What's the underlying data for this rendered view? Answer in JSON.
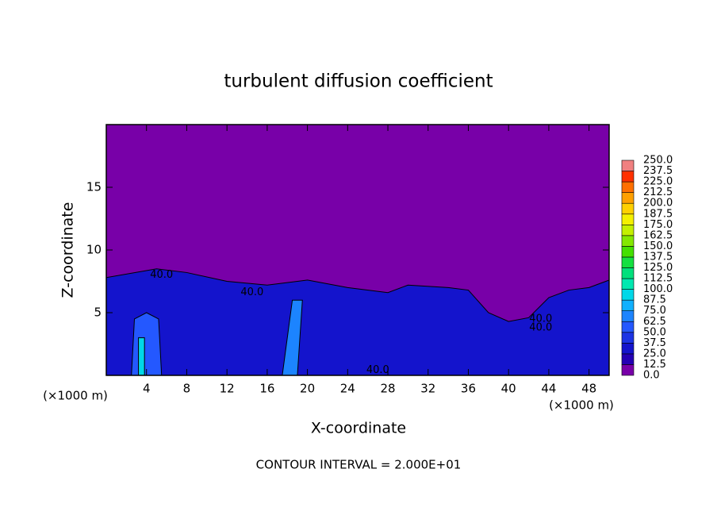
{
  "chart_data": {
    "type": "contour",
    "title": "turbulent diffusion coefficient",
    "x_label": "X-coordinate",
    "y_label": "Z-coordinate",
    "z_unit_label": "(×1000 m)",
    "x_unit_label": "(×1000 m)",
    "footer": "CONTOUR INTERVAL = 2.000E+01",
    "xlim": [
      0,
      50
    ],
    "ylim": [
      0,
      20
    ],
    "xticks": [
      4,
      8,
      12,
      16,
      20,
      24,
      28,
      32,
      36,
      40,
      44,
      48
    ],
    "yticks": [
      5,
      10,
      15
    ],
    "colorbar": {
      "ticks": [
        {
          "value": 0,
          "label": "0.0"
        },
        {
          "value": 12.5,
          "label": "12.5"
        },
        {
          "value": 25,
          "label": "25.0"
        },
        {
          "value": 37.5,
          "label": "37.5"
        },
        {
          "value": 50,
          "label": "50.0"
        },
        {
          "value": 62.5,
          "label": "62.5"
        },
        {
          "value": 75,
          "label": "75.0"
        },
        {
          "value": 87.5,
          "label": "87.5"
        },
        {
          "value": 100,
          "label": "100.0"
        },
        {
          "value": 112.5,
          "label": "112.5"
        },
        {
          "value": 125,
          "label": "125.0"
        },
        {
          "value": 137.5,
          "label": "137.5"
        },
        {
          "value": 150,
          "label": "150.0"
        },
        {
          "value": 162.5,
          "label": "162.5"
        },
        {
          "value": 175,
          "label": "175.0"
        },
        {
          "value": 187.5,
          "label": "187.5"
        },
        {
          "value": 200,
          "label": "200.0"
        },
        {
          "value": 212.5,
          "label": "212.5"
        },
        {
          "value": 225,
          "label": "225.0"
        },
        {
          "value": 237.5,
          "label": "237.5"
        },
        {
          "value": 250,
          "label": "250.0"
        }
      ],
      "colors": [
        "#7800a8",
        "#2400b4",
        "#1414cc",
        "#1c34e4",
        "#2458ff",
        "#1c84ff",
        "#10b0ff",
        "#00d8e8",
        "#00e8b0",
        "#00e07c",
        "#14e040",
        "#44e000",
        "#84e800",
        "#c4f000",
        "#f4f000",
        "#ffd000",
        "#ffa000",
        "#ff7000",
        "#ff3000",
        "#f08080"
      ]
    },
    "filled_regions": [
      {
        "value": 0,
        "x": [
          0,
          50,
          50,
          0
        ],
        "z": [
          0,
          0,
          20,
          20
        ]
      },
      {
        "value": 30,
        "x": [
          0,
          0,
          5,
          8,
          12,
          16,
          20,
          24,
          28,
          30,
          34,
          36,
          38,
          40,
          42,
          44,
          46,
          48,
          50,
          50
        ],
        "z": [
          0,
          7.8,
          8.5,
          8.2,
          7.5,
          7.2,
          7.6,
          7,
          6.6,
          7.2,
          7,
          6.8,
          5,
          4.3,
          4.6,
          6.2,
          6.8,
          7,
          7.6,
          0
        ]
      },
      {
        "value": 50,
        "x": [
          2.5,
          5.5,
          5.2,
          4,
          2.8
        ],
        "z": [
          0,
          0,
          4.5,
          5,
          4.5
        ]
      },
      {
        "value": 62.5,
        "x": [
          17.5,
          19,
          19.5,
          18.5
        ],
        "z": [
          0,
          0,
          6,
          6
        ]
      },
      {
        "value": 90,
        "x": [
          3.2,
          3.8,
          3.8,
          3.2
        ],
        "z": [
          0,
          0,
          3,
          3
        ]
      }
    ],
    "contour_labels": [
      {
        "x": 5.5,
        "z": 8.0,
        "value": 40,
        "label": "40.0"
      },
      {
        "x": 14.5,
        "z": 6.6,
        "value": 40,
        "label": "40.0"
      },
      {
        "x": 27,
        "z": 0.4,
        "value": 40,
        "label": "40.0"
      },
      {
        "x": 43.2,
        "z": 4.5,
        "value": 40,
        "label": "40.0"
      },
      {
        "x": 43.2,
        "z": 3.8,
        "value": 40,
        "label": "40.0"
      }
    ]
  }
}
